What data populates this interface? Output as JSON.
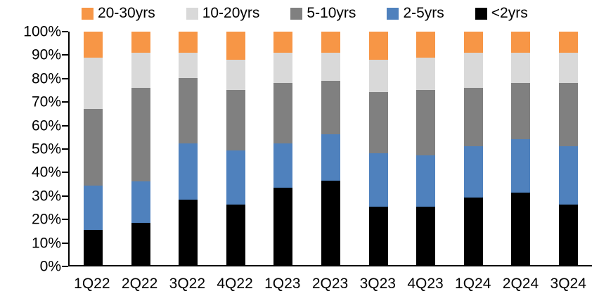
{
  "chart_data": {
    "type": "bar",
    "variant": "stacked-100-percent",
    "categories": [
      "1Q22",
      "2Q22",
      "3Q22",
      "4Q22",
      "1Q23",
      "2Q23",
      "3Q23",
      "4Q23",
      "1Q24",
      "2Q24",
      "3Q24"
    ],
    "series": [
      {
        "name": "<2yrs",
        "color": "#000000",
        "values": [
          15,
          18,
          28,
          26,
          33,
          36,
          25,
          25,
          29,
          31,
          26
        ]
      },
      {
        "name": "2-5yrs",
        "color": "#4F81BD",
        "values": [
          19,
          18,
          24,
          23,
          19,
          20,
          23,
          22,
          22,
          23,
          25
        ]
      },
      {
        "name": "5-10yrs",
        "color": "#808080",
        "values": [
          33,
          40,
          28,
          26,
          26,
          23,
          26,
          28,
          25,
          24,
          27
        ]
      },
      {
        "name": "10-20yrs",
        "color": "#D9D9D9",
        "values": [
          22,
          15,
          11,
          13,
          13,
          12,
          14,
          14,
          15,
          13,
          13
        ]
      },
      {
        "name": "20-30yrs",
        "color": "#F79646",
        "values": [
          11,
          9,
          9,
          12,
          9,
          9,
          12,
          11,
          9,
          9,
          9
        ]
      }
    ],
    "y_ticks": [
      "0%",
      "10%",
      "20%",
      "30%",
      "40%",
      "50%",
      "60%",
      "70%",
      "80%",
      "90%",
      "100%"
    ],
    "ylim": [
      0,
      100
    ],
    "grid": false,
    "legend_position": "top",
    "legend_order": [
      "20-30yrs",
      "10-20yrs",
      "5-10yrs",
      "2-5yrs",
      "<2yrs"
    ],
    "axis_color": "#000000",
    "text_color": "#000000"
  }
}
